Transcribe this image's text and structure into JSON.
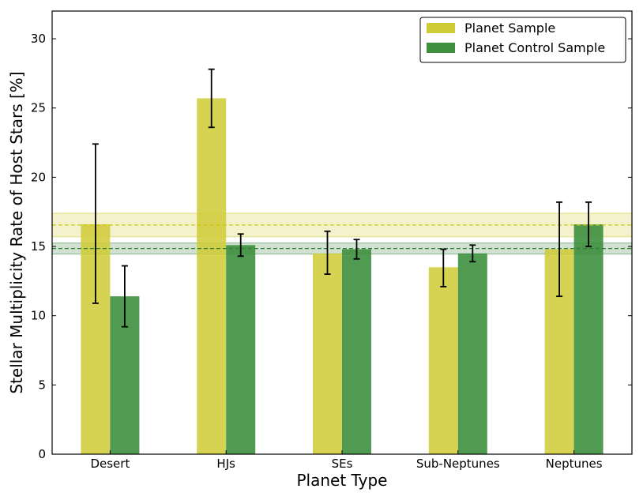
{
  "chart_data": {
    "type": "bar",
    "title": "",
    "xlabel": "Planet Type",
    "ylabel": "Stellar Multiplicity Rate of Host Stars [%]",
    "ylim": [
      0,
      32
    ],
    "yticks": [
      0,
      5,
      10,
      15,
      20,
      25,
      30
    ],
    "categories": [
      "Desert",
      "HJs",
      "SEs",
      "Sub-Neptunes",
      "Neptunes"
    ],
    "series": [
      {
        "name": "Planet Sample",
        "color": "#cfcb35",
        "values": [
          16.6,
          25.7,
          14.5,
          13.5,
          14.8
        ],
        "err_low": [
          5.7,
          2.1,
          1.5,
          1.4,
          3.4
        ],
        "err_high": [
          5.8,
          2.1,
          1.6,
          1.3,
          3.4
        ]
      },
      {
        "name": "Planet Control Sample",
        "color": "#3e8f3e",
        "values": [
          11.4,
          15.1,
          14.8,
          14.5,
          16.6
        ],
        "err_low": [
          2.2,
          0.8,
          0.7,
          0.6,
          1.6
        ],
        "err_high": [
          2.2,
          0.8,
          0.7,
          0.6,
          1.6
        ]
      }
    ],
    "reference_lines": [
      {
        "series": "Planet Sample",
        "value": 16.55,
        "band": [
          15.7,
          17.4
        ],
        "color": "#c9c418"
      },
      {
        "series": "Planet Control Sample",
        "value": 14.85,
        "band": [
          14.45,
          15.25
        ],
        "color": "#2e7d32"
      }
    ],
    "legend": {
      "position": "top-right",
      "entries": [
        "Planet Sample",
        "Planet Control Sample"
      ]
    }
  }
}
